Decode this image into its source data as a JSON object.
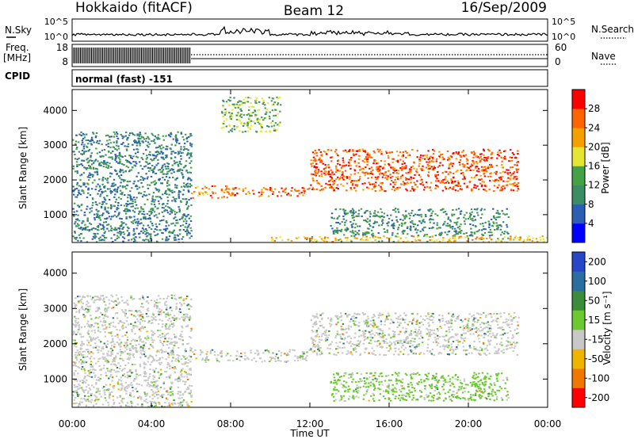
{
  "header": {
    "station": "Hokkaido (fitACF)",
    "beam": "Beam 12",
    "date": "16/Sep/2009"
  },
  "summary_panel": {
    "left_label_sky": "N.Sky",
    "left_label_freq": "Freq.",
    "left_label_freq_unit": "[MHz]",
    "left_label_cpid": "CPID",
    "right_label_search": "N.Search",
    "right_label_nave": "Nave",
    "sky_ticks": [
      "10^5",
      "10^0"
    ],
    "search_ticks": [
      "10^5",
      "10^0"
    ],
    "freq_ticks": [
      "18",
      "8"
    ],
    "nave_ticks": [
      "60",
      "0"
    ],
    "cpid_text": "normal (fast) -151"
  },
  "chart_data": [
    {
      "type": "heatmap",
      "name": "Power",
      "ylabel": "Slant Range [km]",
      "xlabel": "",
      "x_range_hours": [
        0,
        24
      ],
      "ylim": [
        200,
        4600
      ],
      "y_ticks": [
        1000,
        2000,
        3000,
        4000
      ],
      "colorbar": {
        "label": "Power [dB]",
        "ticks": [
          4,
          8,
          12,
          16,
          20,
          24,
          28
        ],
        "range": [
          0,
          32
        ],
        "colors": [
          "#0000ff",
          "#2b5fb4",
          "#3c8c64",
          "#46a046",
          "#e6e632",
          "#f5a000",
          "#ff6400",
          "#ff0000"
        ]
      },
      "regions": [
        {
          "t": [
            0.0,
            6.0
          ],
          "r": [
            200,
            3400
          ],
          "value": 9
        },
        {
          "t": [
            6.0,
            8.0
          ],
          "r": [
            1500,
            1850
          ],
          "value": 24
        },
        {
          "t": [
            7.5,
            10.5
          ],
          "r": [
            3400,
            4400
          ],
          "value": 15
        },
        {
          "t": [
            8.0,
            12.0
          ],
          "r": [
            1550,
            1800
          ],
          "value": 26
        },
        {
          "t": [
            12.0,
            22.5
          ],
          "r": [
            1700,
            2900
          ],
          "value": 27
        },
        {
          "t": [
            13.0,
            22.0
          ],
          "r": [
            400,
            1200
          ],
          "value": 11
        },
        {
          "t": [
            10.0,
            24.0
          ],
          "r": [
            200,
            400
          ],
          "value": 20
        }
      ]
    },
    {
      "type": "heatmap",
      "name": "Velocity",
      "ylabel": "Slant Range [km]",
      "xlabel": "Time UT",
      "x_ticks": [
        "00:00",
        "04:00",
        "08:00",
        "12:00",
        "16:00",
        "20:00",
        "00:00"
      ],
      "x_range_hours": [
        0,
        24
      ],
      "ylim": [
        200,
        4600
      ],
      "y_ticks": [
        1000,
        2000,
        3000,
        4000
      ],
      "colorbar": {
        "label": "Velocity [m s⁻¹]",
        "ticks": [
          "200",
          "100",
          "50",
          "15",
          "-15",
          "-50",
          "-100",
          "-200"
        ],
        "colors": [
          "#2846c8",
          "#2d6ea0",
          "#3c8c3c",
          "#6ec832",
          "#c8c8c8",
          "#f0b400",
          "#f07800",
          "#ff0000"
        ]
      },
      "regions": [
        {
          "t": [
            0.0,
            6.0
          ],
          "r": [
            200,
            3400
          ],
          "value": 0
        },
        {
          "t": [
            6.0,
            12.0
          ],
          "r": [
            1500,
            1850
          ],
          "value": 0
        },
        {
          "t": [
            12.0,
            22.5
          ],
          "r": [
            1700,
            2900
          ],
          "value": 0
        },
        {
          "t": [
            13.0,
            22.0
          ],
          "r": [
            400,
            1200
          ],
          "value": 60
        }
      ]
    }
  ]
}
